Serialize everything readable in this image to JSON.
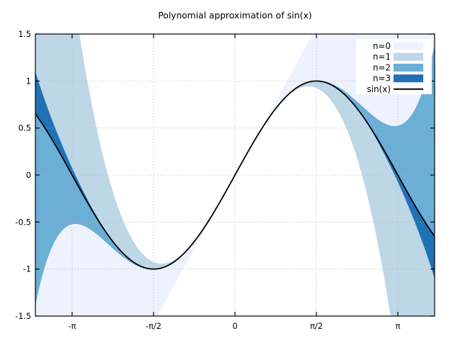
{
  "chart_data": {
    "type": "area",
    "title": "Polynomial approximation of sin(x)",
    "x_range": [
      -3.85,
      3.85
    ],
    "y_range": [
      -1.5,
      1.5
    ],
    "x_ticks": [
      {
        "value": -3.14159265,
        "label": "-π"
      },
      {
        "value": -1.57079633,
        "label": "-π/2"
      },
      {
        "value": 0,
        "label": "0"
      },
      {
        "value": 1.57079633,
        "label": "π/2"
      },
      {
        "value": 3.14159265,
        "label": "π"
      }
    ],
    "y_ticks": [
      {
        "value": -1.5,
        "label": "-1.5"
      },
      {
        "value": -1,
        "label": "-1"
      },
      {
        "value": -0.5,
        "label": "-0.5"
      },
      {
        "value": 0,
        "label": "0"
      },
      {
        "value": 0.5,
        "label": "0.5"
      },
      {
        "value": 1,
        "label": "1"
      },
      {
        "value": 1.5,
        "label": "1.5"
      }
    ],
    "grid": {
      "style": "dotted",
      "color": "#b4b4b4"
    },
    "legend": {
      "position": "top-right",
      "entries": [
        "n=0",
        "n=1",
        "n=2",
        "n=3",
        "sin(x)"
      ]
    },
    "reference_curve": {
      "name": "sin(x)",
      "function": "sin",
      "color": "#000000",
      "line_width": 1.8
    },
    "bands": [
      {
        "label": "n=0",
        "color": "#eef2fc",
        "polynomial": "x",
        "coefficients": [
          0,
          1
        ]
      },
      {
        "label": "n=1",
        "color": "#bdd7e7",
        "polynomial": "x - x^3/3!",
        "coefficients": [
          0,
          1,
          0,
          -0.1666666667
        ]
      },
      {
        "label": "n=2",
        "color": "#6baed6",
        "polynomial": "x - x^3/3! + x^5/5!",
        "coefficients": [
          0,
          1,
          0,
          -0.1666666667,
          0,
          0.0083333333
        ]
      },
      {
        "label": "n=3",
        "color": "#2171b5",
        "polynomial": "x - x^3/3! + x^5/5! - x^7/7!",
        "coefficients": [
          0,
          1,
          0,
          -0.1666666667,
          0,
          0.0083333333,
          0,
          -0.0001984127
        ]
      }
    ],
    "band_between": [
      "taylor_polynomial",
      "sin(x)"
    ],
    "band_clipping": "clipped to y_range"
  }
}
